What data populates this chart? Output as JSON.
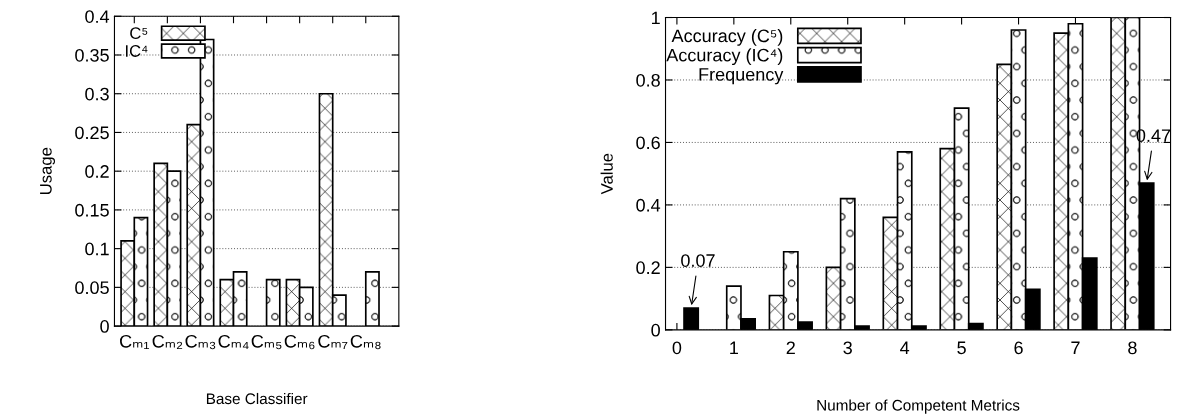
{
  "chart_data": [
    {
      "type": "bar",
      "xlabel": "Base Classifier",
      "ylabel": "Usage",
      "categories": [
        "Cₘ₁",
        "Cₘ₂",
        "Cₘ₃",
        "Cₘ₄",
        "Cₘ₅",
        "Cₘ₆",
        "Cₘ₇",
        "Cₘ₈"
      ],
      "series": [
        {
          "name": "C⁵",
          "color": "#000000",
          "values": [
            0.11,
            0.21,
            0.26,
            0.06,
            null,
            0.06,
            0.3,
            null
          ]
        },
        {
          "name": "IC⁴",
          "color": "#000000",
          "values": [
            0.14,
            0.2,
            0.37,
            0.07,
            0.06,
            0.05,
            0.04,
            0.07
          ]
        }
      ],
      "ylim": [
        0,
        0.4
      ],
      "yticks": [
        0,
        0.05,
        0.1,
        0.15,
        0.2,
        0.25,
        0.3,
        0.35,
        0.4
      ],
      "grid": "y",
      "legend": "top left"
    },
    {
      "type": "bar",
      "xlabel": "Number of Competent Metrics",
      "ylabel": "Value",
      "x": [
        0,
        1,
        2,
        3,
        4,
        5,
        6,
        7,
        8
      ],
      "series": [
        {
          "name": "Accuracy (C⁵)",
          "color": "#000000",
          "values": [
            null,
            null,
            0.11,
            0.2,
            0.36,
            0.58,
            0.85,
            0.95,
            1.0
          ]
        },
        {
          "name": "Accuracy (IC⁴)",
          "color": "#000000",
          "values": [
            null,
            0.14,
            0.25,
            0.42,
            0.57,
            0.71,
            0.96,
            0.98,
            1.0
          ]
        },
        {
          "name": "Frequency",
          "color": "#000000",
          "values": [
            0.07,
            0.035,
            0.025,
            0.012,
            0.012,
            0.02,
            0.13,
            0.23,
            0.47
          ]
        }
      ],
      "annotations": [
        {
          "text": "0.07",
          "x": 0.25,
          "y": 0.07
        },
        {
          "text": "0.47",
          "x": 8.25,
          "y": 0.47
        }
      ],
      "xlim": [
        -0.2,
        8.67
      ],
      "xticks": [
        0,
        1,
        2,
        3,
        4,
        5,
        6,
        7,
        8
      ],
      "ylim": [
        0,
        1
      ],
      "yticks": [
        0,
        0.2,
        0.4,
        0.6,
        0.8,
        1
      ],
      "grid": "y",
      "legend": "top left"
    }
  ]
}
